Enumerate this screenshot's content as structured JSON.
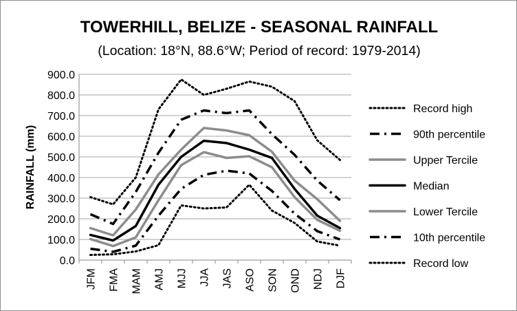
{
  "chart_data": {
    "type": "line",
    "title": "TOWERHILL, BELIZE - SEASONAL RAINFALL",
    "subtitle": "(Location: 18°N, 88.6°W; Period of record: 1979-2014)",
    "xlabel": "",
    "ylabel": "RAINFALL (mm)",
    "ylim": [
      0,
      900
    ],
    "yticks": [
      "0.0",
      "100.0",
      "200.0",
      "300.0",
      "400.0",
      "500.0",
      "600.0",
      "700.0",
      "800.0",
      "900.0"
    ],
    "grid": true,
    "legend_position": "right",
    "categories": [
      "JFM",
      "FMA",
      "MAM",
      "AMJ",
      "MJJ",
      "JJA",
      "JAS",
      "ASO",
      "SON",
      "OND",
      "NDJ",
      "DJF"
    ],
    "series": [
      {
        "name": "Record high",
        "style": "dotted",
        "color": "#000000",
        "values": [
          305,
          270,
          400,
          730,
          875,
          800,
          830,
          865,
          840,
          770,
          580,
          485
        ]
      },
      {
        "name": "90th percentile",
        "style": "dashdot",
        "color": "#000000",
        "values": [
          222,
          175,
          330,
          520,
          680,
          725,
          712,
          725,
          610,
          510,
          385,
          290
        ]
      },
      {
        "name": "Upper Tercile",
        "style": "solid",
        "color": "#8c8c8c",
        "values": [
          155,
          120,
          245,
          415,
          535,
          640,
          628,
          605,
          525,
          385,
          295,
          190
        ]
      },
      {
        "name": "Median",
        "style": "solid",
        "color": "#000000",
        "values": [
          122,
          95,
          165,
          365,
          500,
          578,
          567,
          535,
          495,
          345,
          215,
          155
        ]
      },
      {
        "name": "Lower Tercile",
        "style": "solid",
        "color": "#8c8c8c",
        "values": [
          102,
          68,
          110,
          290,
          460,
          523,
          495,
          503,
          450,
          305,
          195,
          142
        ]
      },
      {
        "name": "10th percentile",
        "style": "dashdash",
        "color": "#000000",
        "values": [
          55,
          40,
          70,
          215,
          345,
          413,
          433,
          420,
          335,
          225,
          140,
          100
        ]
      },
      {
        "name": "Record low",
        "style": "dotted",
        "color": "#000000",
        "values": [
          25,
          28,
          42,
          72,
          265,
          250,
          255,
          365,
          240,
          180,
          90,
          70
        ]
      }
    ]
  }
}
